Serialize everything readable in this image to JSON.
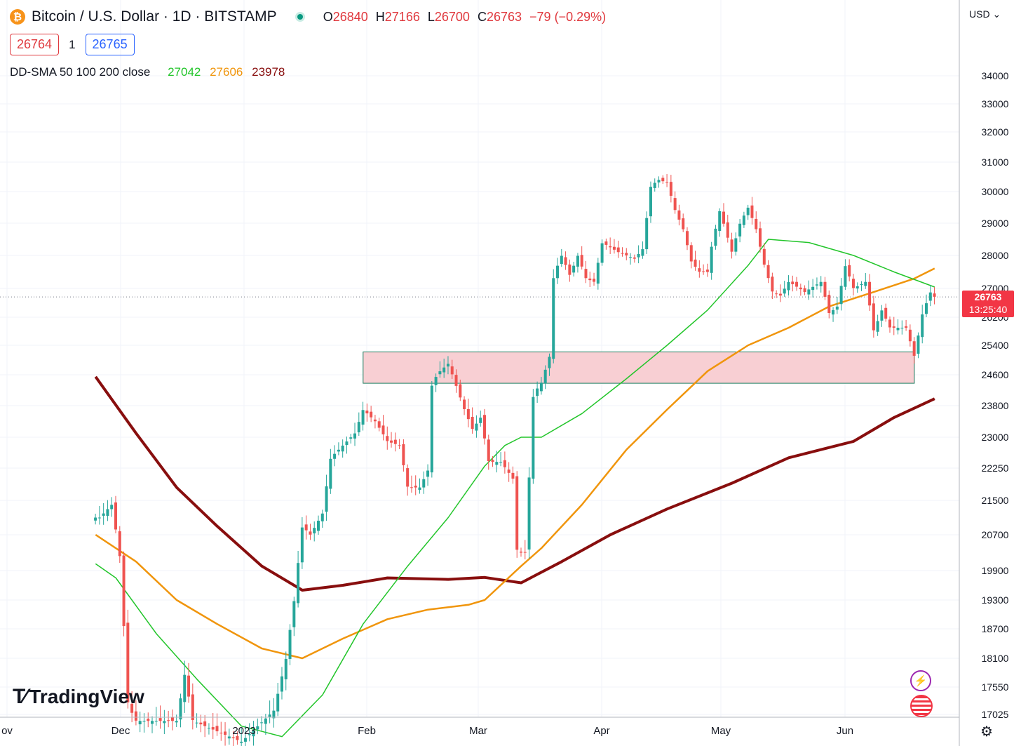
{
  "header": {
    "symbol_icon": "bitcoin-icon",
    "title": "Bitcoin / U.S. Dollar · 1D · BITSTAMP",
    "ohlc": [
      {
        "label": "O",
        "value": "26840"
      },
      {
        "label": "H",
        "value": "27166"
      },
      {
        "label": "L",
        "value": "26700"
      },
      {
        "label": "C",
        "value": "26763"
      }
    ],
    "change": "−79 (−0.29%)",
    "sell_price": "26764",
    "spread": "1",
    "buy_price": "26765"
  },
  "indicator": {
    "name": "DD-SMA 50 100 200 close",
    "sma50": "27042",
    "sma100": "27606",
    "sma200": "23978"
  },
  "currency": "USD",
  "current_price": {
    "price": "26763",
    "countdown": "13:25:40",
    "value": 26763
  },
  "logo_text": "TradingView",
  "colors": {
    "up": "#26a69a",
    "down": "#ef5350",
    "sma50": "#22c52a",
    "sma100": "#f0950c",
    "sma200": "#880e0e",
    "zone_fill": "#f8cfd3",
    "zone_border": "#1b7a5e"
  },
  "chart_data": {
    "type": "candlestick",
    "title": "",
    "y_ticks": [
      17025,
      17550,
      18100,
      18700,
      19300,
      19900,
      20700,
      21500,
      22250,
      23000,
      23800,
      24600,
      25400,
      26200,
      27000,
      28000,
      29000,
      30000,
      31000,
      32000,
      33000,
      34000
    ],
    "x_ticks": [
      "ov",
      "Dec",
      "2023",
      "Feb",
      "Mar",
      "Apr",
      "May",
      "Jun"
    ],
    "support_zone": {
      "from_date": "2023-01-30",
      "to_date": "2023-06-15",
      "low": 24380,
      "high": 25220
    },
    "price_path": [
      [
        "2022-11-26",
        21100
      ],
      [
        "2022-11-29",
        21400
      ],
      [
        "2022-12-01",
        20200
      ],
      [
        "2022-12-03",
        17200
      ],
      [
        "2022-12-05",
        16900
      ],
      [
        "2022-12-15",
        16900
      ],
      [
        "2022-12-17",
        17800
      ],
      [
        "2022-12-19",
        16900
      ],
      [
        "2022-12-31",
        16500
      ],
      [
        "2023-01-08",
        17100
      ],
      [
        "2023-01-11",
        18100
      ],
      [
        "2023-01-13",
        19300
      ],
      [
        "2023-01-15",
        20900
      ],
      [
        "2023-01-17",
        20700
      ],
      [
        "2023-01-20",
        21200
      ],
      [
        "2023-01-22",
        22500
      ],
      [
        "2023-01-25",
        22800
      ],
      [
        "2023-01-28",
        23100
      ],
      [
        "2023-01-30",
        23700
      ],
      [
        "2023-02-02",
        23400
      ],
      [
        "2023-02-05",
        22900
      ],
      [
        "2023-02-08",
        22800
      ],
      [
        "2023-02-10",
        21800
      ],
      [
        "2023-02-13",
        21800
      ],
      [
        "2023-02-15",
        22200
      ],
      [
        "2023-02-16",
        24400
      ],
      [
        "2023-02-18",
        24700
      ],
      [
        "2023-02-20",
        24900
      ],
      [
        "2023-02-22",
        24300
      ],
      [
        "2023-02-24",
        23700
      ],
      [
        "2023-02-26",
        23200
      ],
      [
        "2023-02-28",
        23500
      ],
      [
        "2023-03-02",
        22400
      ],
      [
        "2023-03-05",
        22400
      ],
      [
        "2023-03-08",
        22000
      ],
      [
        "2023-03-09",
        20300
      ],
      [
        "2023-03-11",
        20300
      ],
      [
        "2023-03-12",
        22100
      ],
      [
        "2023-03-13",
        24100
      ],
      [
        "2023-03-15",
        24400
      ],
      [
        "2023-03-17",
        25100
      ],
      [
        "2023-03-18",
        27400
      ],
      [
        "2023-03-20",
        28000
      ],
      [
        "2023-03-22",
        27400
      ],
      [
        "2023-03-24",
        28000
      ],
      [
        "2023-03-26",
        27300
      ],
      [
        "2023-03-28",
        27200
      ],
      [
        "2023-03-30",
        28400
      ],
      [
        "2023-04-03",
        28100
      ],
      [
        "2023-04-07",
        27900
      ],
      [
        "2023-04-09",
        28200
      ],
      [
        "2023-04-11",
        30200
      ],
      [
        "2023-04-13",
        30400
      ],
      [
        "2023-04-15",
        30300
      ],
      [
        "2023-04-17",
        29400
      ],
      [
        "2023-04-19",
        28800
      ],
      [
        "2023-04-21",
        27800
      ],
      [
        "2023-04-23",
        27500
      ],
      [
        "2023-04-25",
        27500
      ],
      [
        "2023-04-26",
        28300
      ],
      [
        "2023-04-28",
        29400
      ],
      [
        "2023-05-01",
        28100
      ],
      [
        "2023-05-03",
        29000
      ],
      [
        "2023-05-05",
        29500
      ],
      [
        "2023-05-07",
        28800
      ],
      [
        "2023-05-09",
        27700
      ],
      [
        "2023-05-11",
        26900
      ],
      [
        "2023-05-13",
        26800
      ],
      [
        "2023-05-15",
        27200
      ],
      [
        "2023-05-19",
        26900
      ],
      [
        "2023-05-23",
        27200
      ],
      [
        "2023-05-25",
        26300
      ],
      [
        "2023-05-27",
        26500
      ],
      [
        "2023-05-29",
        27700
      ],
      [
        "2023-05-31",
        27000
      ],
      [
        "2023-06-03",
        27200
      ],
      [
        "2023-06-05",
        25800
      ],
      [
        "2023-06-07",
        26400
      ],
      [
        "2023-06-09",
        25900
      ],
      [
        "2023-06-11",
        25900
      ],
      [
        "2023-06-13",
        25900
      ],
      [
        "2023-06-15",
        25100
      ],
      [
        "2023-06-17",
        26300
      ],
      [
        "2023-06-19",
        26900
      ],
      [
        "2023-06-20",
        26763
      ]
    ],
    "sma50": [
      [
        "2022-11-25",
        20050
      ],
      [
        "2022-11-30",
        19750
      ],
      [
        "2022-12-10",
        18600
      ],
      [
        "2022-12-20",
        17700
      ],
      [
        "2022-12-31",
        16800
      ],
      [
        "2023-01-10",
        16600
      ],
      [
        "2023-01-20",
        17400
      ],
      [
        "2023-01-30",
        18800
      ],
      [
        "2023-02-10",
        20000
      ],
      [
        "2023-02-20",
        21100
      ],
      [
        "2023-03-01",
        22300
      ],
      [
        "2023-03-06",
        22800
      ],
      [
        "2023-03-10",
        23000
      ],
      [
        "2023-03-15",
        23000
      ],
      [
        "2023-03-25",
        23600
      ],
      [
        "2023-04-05",
        24500
      ],
      [
        "2023-04-15",
        25400
      ],
      [
        "2023-04-25",
        26400
      ],
      [
        "2023-05-05",
        27700
      ],
      [
        "2023-05-10",
        28500
      ],
      [
        "2023-05-20",
        28400
      ],
      [
        "2023-05-31",
        28000
      ],
      [
        "2023-06-10",
        27500
      ],
      [
        "2023-06-20",
        27042
      ]
    ],
    "sma100": [
      [
        "2022-11-25",
        20700
      ],
      [
        "2022-12-05",
        20100
      ],
      [
        "2022-12-15",
        19300
      ],
      [
        "2022-12-25",
        18800
      ],
      [
        "2023-01-05",
        18300
      ],
      [
        "2023-01-15",
        18100
      ],
      [
        "2023-01-25",
        18500
      ],
      [
        "2023-02-05",
        18900
      ],
      [
        "2023-02-15",
        19100
      ],
      [
        "2023-02-25",
        19200
      ],
      [
        "2023-03-01",
        19300
      ],
      [
        "2023-03-10",
        20000
      ],
      [
        "2023-03-15",
        20400
      ],
      [
        "2023-03-25",
        21400
      ],
      [
        "2023-04-05",
        22700
      ],
      [
        "2023-04-15",
        23700
      ],
      [
        "2023-04-25",
        24700
      ],
      [
        "2023-05-05",
        25400
      ],
      [
        "2023-05-15",
        25900
      ],
      [
        "2023-05-25",
        26500
      ],
      [
        "2023-06-05",
        26900
      ],
      [
        "2023-06-15",
        27300
      ],
      [
        "2023-06-20",
        27606
      ]
    ],
    "sma200": [
      [
        "2022-11-25",
        24550
      ],
      [
        "2022-12-05",
        23100
      ],
      [
        "2022-12-15",
        21800
      ],
      [
        "2022-12-25",
        20900
      ],
      [
        "2023-01-05",
        20000
      ],
      [
        "2023-01-15",
        19500
      ],
      [
        "2023-01-25",
        19600
      ],
      [
        "2023-02-05",
        19750
      ],
      [
        "2023-02-20",
        19720
      ],
      [
        "2023-03-01",
        19760
      ],
      [
        "2023-03-10",
        19650
      ],
      [
        "2023-03-20",
        20100
      ],
      [
        "2023-04-01",
        20700
      ],
      [
        "2023-04-15",
        21300
      ],
      [
        "2023-05-01",
        21900
      ],
      [
        "2023-05-15",
        22500
      ],
      [
        "2023-05-31",
        22900
      ],
      [
        "2023-06-10",
        23500
      ],
      [
        "2023-06-20",
        23978
      ]
    ]
  }
}
